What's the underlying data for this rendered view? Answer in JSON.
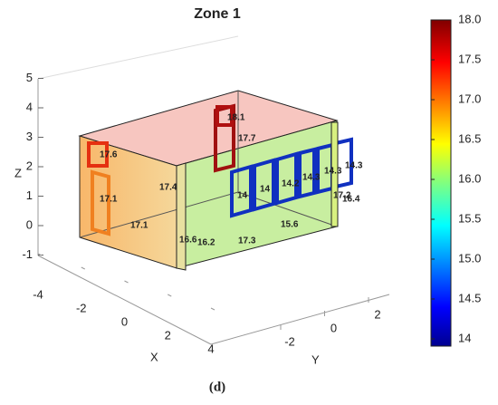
{
  "chart_data": {
    "type": "surface3d",
    "title": "Zone 1",
    "caption": "(d)",
    "xlabel": "X",
    "ylabel": "Y",
    "zlabel": "Z",
    "xticks": [
      -4,
      -2,
      0,
      2,
      4
    ],
    "yticks": [
      -2,
      0,
      2
    ],
    "zticks": [
      -1,
      0,
      1,
      2,
      3,
      4,
      5
    ],
    "clim": [
      14,
      18
    ],
    "cticks": [
      {
        "value": 14,
        "label": "14"
      },
      14.5,
      {
        "value": 15,
        "label": "15.0"
      },
      15.5,
      {
        "value": 16,
        "label": "16.0"
      },
      16.5,
      {
        "value": 17,
        "label": "17.0"
      },
      17.5,
      {
        "value": 18,
        "label": "18.0"
      }
    ],
    "annotations": [
      17.6,
      17.1,
      17.1,
      17.4,
      16.6,
      16.2,
      17.3,
      15.6,
      18.1,
      17.7,
      14,
      14,
      14.2,
      14.3,
      14.3,
      14.3,
      17.2,
      16.4
    ]
  }
}
